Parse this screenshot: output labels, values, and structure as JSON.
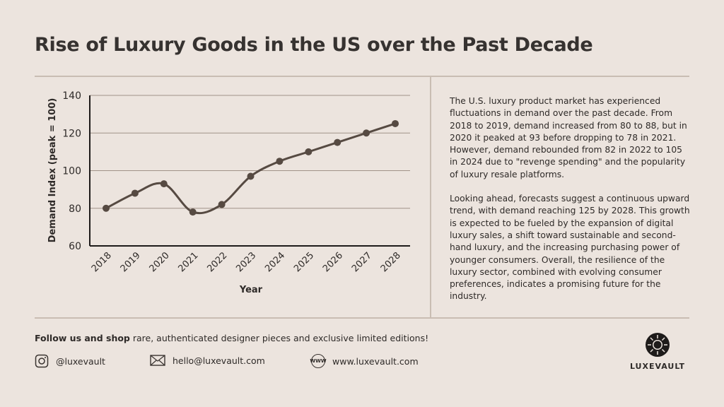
{
  "title": "Rise of Luxury Goods in the US over the Past Decade",
  "description": [
    "The U.S. luxury product market has experienced fluctuations in demand over the past decade. From 2018 to 2019, demand increased from 80 to 88, but in 2020 it peaked at 93 before dropping to 78 in 2021. However, demand rebounded from 82 in 2022 to 105 in 2024 due to \"revenge spending\" and the popularity of luxury resale platforms.",
    "Looking ahead, forecasts suggest a continuous upward trend, with demand reaching 125 by 2028. This growth is expected to be fueled by the expansion of digital luxury sales, a shift toward sustainable and second-hand luxury, and the increasing purchasing power of younger consumers. Overall, the resilience of the luxury sector, combined with evolving consumer preferences, indicates a promising future for the industry."
  ],
  "footer": {
    "bold": "Follow us and shop",
    "rest": " rare, authenticated designer pieces and exclusive limited editions!",
    "instagram": "@luxevault",
    "email": "hello@luxevault.com",
    "website": "www.luxevault.com",
    "www_icon": "WWW",
    "brand": "LUXEVAULT"
  },
  "colors": {
    "line": "#564a42",
    "grid": "#a09288",
    "bg": "#ece4de"
  },
  "chart_data": {
    "type": "line",
    "title": "",
    "xlabel": "Year",
    "ylabel": "Demand Index (peak = 100)",
    "categories": [
      "2018",
      "2019",
      "2020",
      "2021",
      "2022",
      "2023",
      "2024",
      "2025",
      "2026",
      "2027",
      "2028"
    ],
    "values": [
      80,
      88,
      93,
      78,
      82,
      97,
      105,
      110,
      115,
      120,
      125
    ],
    "ylim": [
      60,
      140
    ],
    "yticks": [
      60,
      80,
      100,
      120,
      140
    ],
    "grid": true,
    "smooth": true
  }
}
